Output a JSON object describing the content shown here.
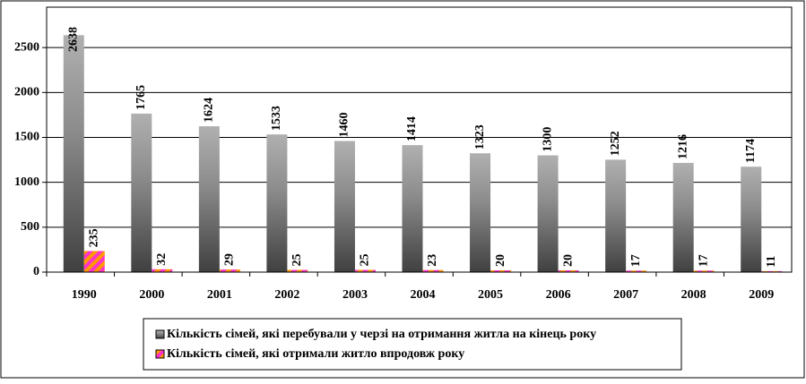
{
  "chart_data": {
    "type": "bar",
    "categories": [
      "1990",
      "2000",
      "2001",
      "2002",
      "2003",
      "2004",
      "2005",
      "2006",
      "2007",
      "2008",
      "2009"
    ],
    "series": [
      {
        "name": "Кількість сімей, які перебували у черзі на отримання житла на кінець року",
        "color": "#808080",
        "values": [
          2638,
          1765,
          1624,
          1533,
          1460,
          1414,
          1323,
          1300,
          1252,
          1216,
          1174
        ]
      },
      {
        "name": "Кількість сімей, які отримали житло впродовж року",
        "color": "#ff33cc",
        "values": [
          235,
          32,
          29,
          25,
          25,
          23,
          20,
          20,
          17,
          17,
          11
        ]
      }
    ],
    "ylim": [
      0,
      2950
    ],
    "yticks": [
      0,
      500,
      1000,
      1500,
      2000,
      2500
    ],
    "grid": true,
    "legend": "bottom"
  }
}
